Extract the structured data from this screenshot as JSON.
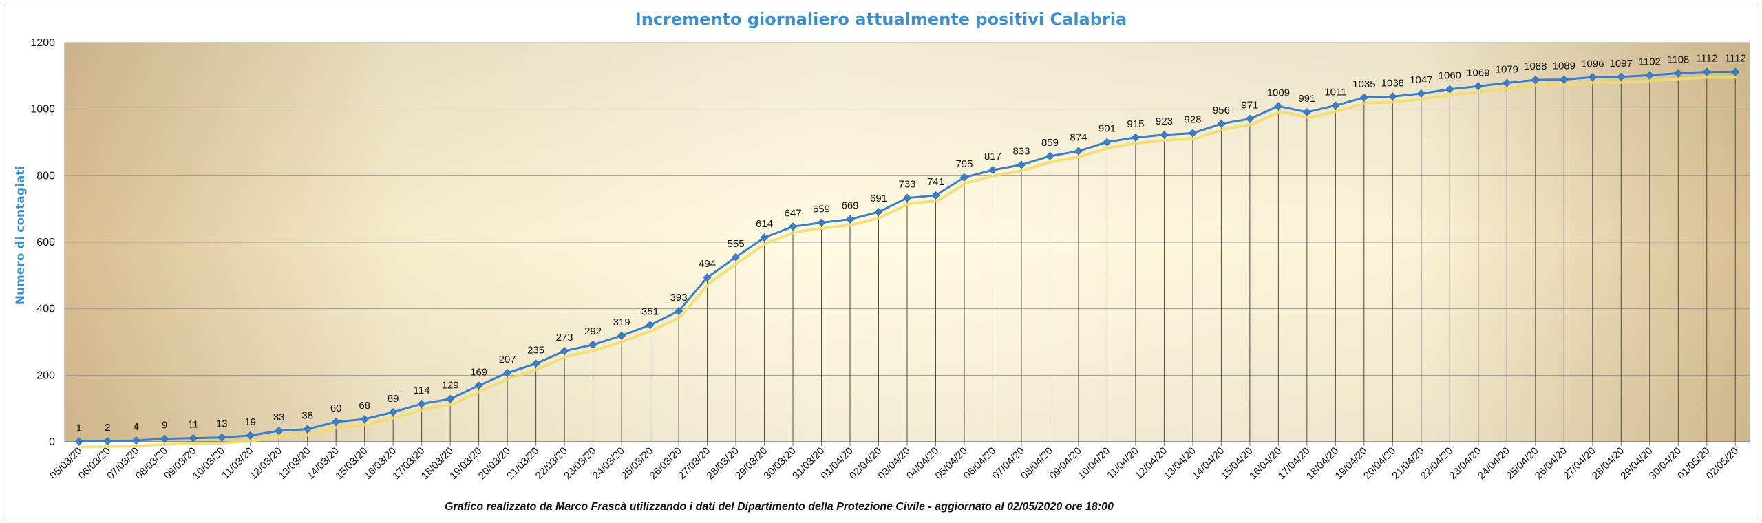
{
  "chart_data": {
    "type": "line",
    "title": "Incremento giornaliero attualmente positivi Calabria",
    "ylabel": "Numero di contagiati",
    "xlabel": "",
    "footer": "Grafico  realizzato da Marco Frascà  utilizzando i dati del Dipartimento  della Protezione Civile  - aggiornato al 02/05/2020 ore 18:00",
    "ylim": [
      0,
      1200
    ],
    "yticks": [
      0,
      200,
      400,
      600,
      800,
      1000,
      1200
    ],
    "grid": true,
    "legend": "none",
    "categories": [
      "05/03/20",
      "06/03/20",
      "07/03/20",
      "08/03/20",
      "09/03/20",
      "10/03/20",
      "11/03/20",
      "12/03/20",
      "13/03/20",
      "14/03/20",
      "15/03/20",
      "16/03/20",
      "17/03/20",
      "18/03/20",
      "19/03/20",
      "20/03/20",
      "21/03/20",
      "22/03/20",
      "23/03/20",
      "24/03/20",
      "25/03/20",
      "26/03/20",
      "27/03/20",
      "28/03/20",
      "29/03/20",
      "30/03/20",
      "31/03/20",
      "01/04/20",
      "02/04/20",
      "03/04/20",
      "04/04/20",
      "05/04/20",
      "06/04/20",
      "07/04/20",
      "08/04/20",
      "09/04/20",
      "10/04/20",
      "11/04/20",
      "12/04/20",
      "13/04/20",
      "14/04/20",
      "15/04/20",
      "16/04/20",
      "17/04/20",
      "18/04/20",
      "19/04/20",
      "20/04/20",
      "21/04/20",
      "22/04/20",
      "23/04/20",
      "24/04/20",
      "25/04/20",
      "26/04/20",
      "27/04/20",
      "28/04/20",
      "29/04/20",
      "30/04/20",
      "01/05/20",
      "02/05/20"
    ],
    "values": [
      1,
      2,
      4,
      9,
      11,
      13,
      19,
      33,
      38,
      60,
      68,
      89,
      114,
      129,
      169,
      207,
      235,
      273,
      292,
      319,
      351,
      393,
      494,
      555,
      614,
      647,
      659,
      669,
      691,
      733,
      741,
      795,
      817,
      833,
      859,
      874,
      901,
      915,
      923,
      928,
      956,
      971,
      1009,
      991,
      1011,
      1035,
      1038,
      1047,
      1060,
      1069,
      1079,
      1088,
      1089,
      1096,
      1097,
      1102,
      1108,
      1112,
      1112
    ],
    "colors": {
      "line": "#3d7fc4",
      "marker": "#3d7fc4",
      "shadow": "#f1dc6a",
      "title": "#3b8fd0",
      "ylabel": "#3b8fd0",
      "grid": "#9a9a9a",
      "drop": "#4a4a4a",
      "bg_light": "#fffdee",
      "bg_dark": "#dcc396"
    }
  }
}
